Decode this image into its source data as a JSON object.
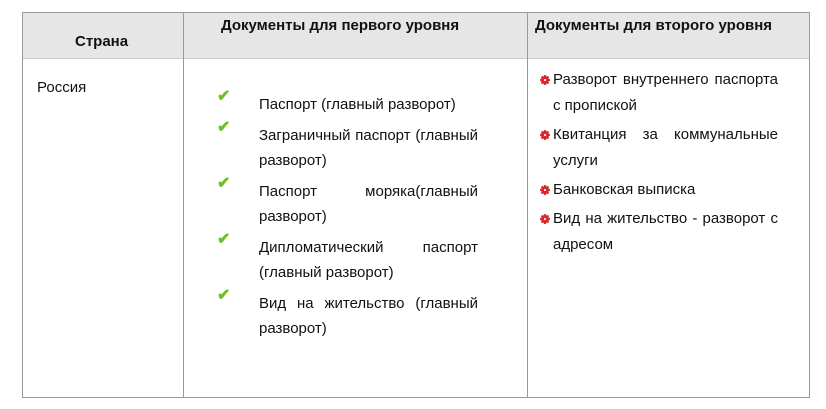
{
  "headers": [
    "Страна",
    "Документы для первого уровня",
    "Документы для второго уровня"
  ],
  "country": "Россия",
  "level1": [
    "Паспорт (главный разворот)",
    "Заграничный паспорт (главный разворот)",
    "Паспорт моряка(главный разворот)",
    "Дипломатический паспорт (главный разворот)",
    "Вид на жительство (главный разворот)"
  ],
  "level2": [
    "Разворот внутреннего паспорта с пропиской",
    "Квитанция за коммунальные услуги",
    "Банковская выписка",
    "Вид на жительство - разворот с адресом"
  ],
  "icons": {
    "level1": "checkmark-icon",
    "level2": "red-flower-bullet-icon"
  },
  "colors": {
    "check": "#6cc024",
    "bullet": "#d9262a",
    "header_bg": "#e6e6e6"
  }
}
